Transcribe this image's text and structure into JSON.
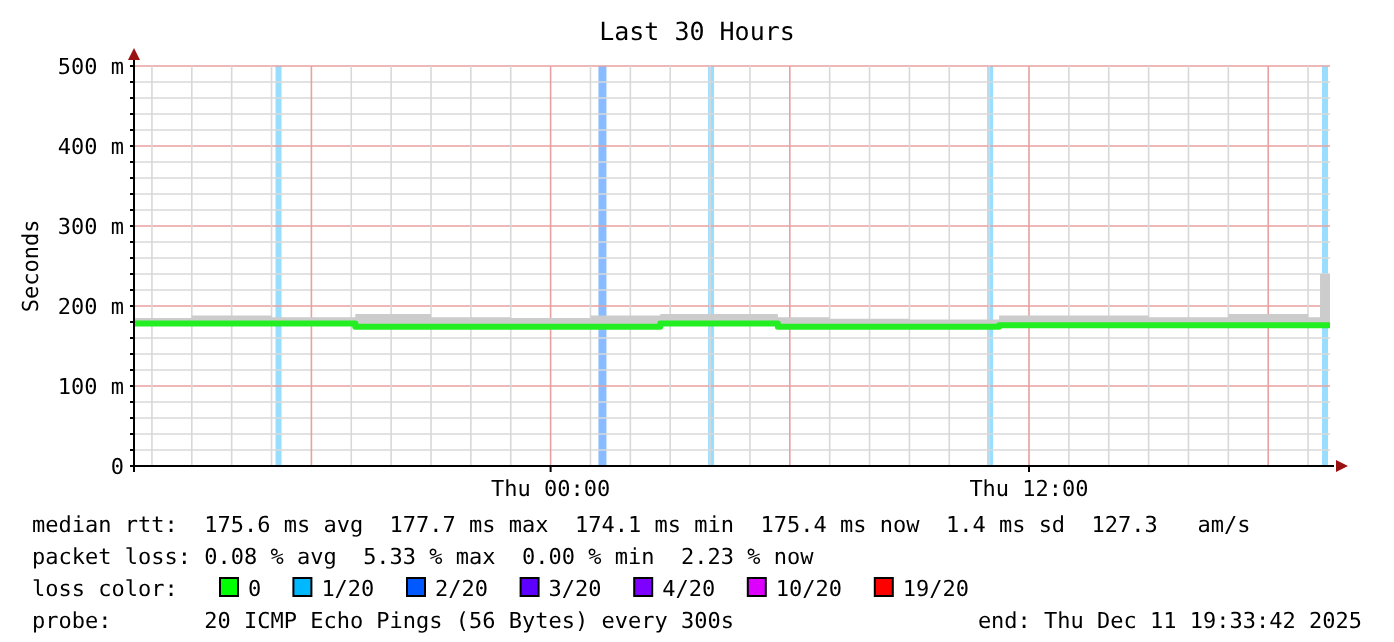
{
  "chart_data": {
    "type": "step",
    "title": "Last 30 Hours",
    "ylabel": "Seconds",
    "xlim": [
      "2025-12-10T13:33",
      "2025-12-11T19:33"
    ],
    "xticks": [
      {
        "value": "2025-12-10T14:00",
        "label": null
      },
      {
        "value": "2025-12-10T15:00",
        "label": null
      },
      {
        "value": "2025-12-10T16:00",
        "label": null
      },
      {
        "value": "2025-12-10T17:00",
        "label": null
      },
      {
        "value": "2025-12-10T18:00",
        "label": null
      },
      {
        "value": "2025-12-10T19:00",
        "label": null
      },
      {
        "value": "2025-12-10T20:00",
        "label": null
      },
      {
        "value": "2025-12-10T21:00",
        "label": null
      },
      {
        "value": "2025-12-10T22:00",
        "label": null
      },
      {
        "value": "2025-12-10T23:00",
        "label": null
      },
      {
        "value": "2025-12-11T00:00",
        "label": "Thu 00:00"
      },
      {
        "value": "2025-12-11T01:00",
        "label": null
      },
      {
        "value": "2025-12-11T02:00",
        "label": null
      },
      {
        "value": "2025-12-11T03:00",
        "label": null
      },
      {
        "value": "2025-12-11T04:00",
        "label": null
      },
      {
        "value": "2025-12-11T05:00",
        "label": null
      },
      {
        "value": "2025-12-11T06:00",
        "label": null
      },
      {
        "value": "2025-12-11T07:00",
        "label": null
      },
      {
        "value": "2025-12-11T08:00",
        "label": null
      },
      {
        "value": "2025-12-11T09:00",
        "label": null
      },
      {
        "value": "2025-12-11T10:00",
        "label": null
      },
      {
        "value": "2025-12-11T11:00",
        "label": null
      },
      {
        "value": "2025-12-11T12:00",
        "label": "Thu 12:00"
      },
      {
        "value": "2025-12-11T13:00",
        "label": null
      },
      {
        "value": "2025-12-11T14:00",
        "label": null
      },
      {
        "value": "2025-12-11T15:00",
        "label": null
      },
      {
        "value": "2025-12-11T16:00",
        "label": null
      },
      {
        "value": "2025-12-11T17:00",
        "label": null
      },
      {
        "value": "2025-12-11T18:00",
        "label": null
      },
      {
        "value": "2025-12-11T19:00",
        "label": null
      }
    ],
    "ylim": [
      0,
      500
    ],
    "yticks": [
      0,
      {
        "value": 20,
        "label": null
      },
      {
        "value": 40,
        "label": null
      },
      {
        "value": 60,
        "label": null
      },
      {
        "value": 80,
        "label": null
      },
      {
        "value": 100,
        "label": "100 m"
      },
      {
        "value": 120,
        "label": null
      },
      {
        "value": 140,
        "label": null
      },
      {
        "value": 160,
        "label": null
      },
      {
        "value": 180,
        "label": null
      },
      {
        "value": 200,
        "label": "200 m"
      },
      {
        "value": 220,
        "label": null
      },
      {
        "value": 240,
        "label": null
      },
      {
        "value": 260,
        "label": null
      },
      {
        "value": 280,
        "label": null
      },
      {
        "value": 300,
        "label": "300 m"
      },
      {
        "value": 320,
        "label": null
      },
      {
        "value": 340,
        "label": null
      },
      {
        "value": 360,
        "label": null
      },
      {
        "value": 380,
        "label": null
      },
      {
        "value": 400,
        "label": "400 m"
      },
      {
        "value": 420,
        "label": null
      },
      {
        "value": 440,
        "label": null
      },
      {
        "value": 460,
        "label": null
      },
      {
        "value": 480,
        "label": null
      },
      {
        "value": 500,
        "label": "500 m"
      }
    ],
    "grid": true,
    "series": [
      {
        "color": "#22ee22",
        "x": [
          "2025-12-10T13:33",
          "2025-12-10T15:00",
          "2025-12-10T17:00",
          "2025-12-10T19:06",
          "2025-12-10T21:00",
          "2025-12-10T23:00",
          "2025-12-11T01:00",
          "2025-12-11T02:45",
          "2025-12-11T04:00",
          "2025-12-11T05:42",
          "2025-12-11T07:00",
          "2025-12-11T09:00",
          "2025-12-11T11:15",
          "2025-12-11T13:00",
          "2025-12-11T15:00",
          "2025-12-11T17:00",
          "2025-12-11T19:00",
          "2025-12-11T19:18",
          "2025-12-11T19:33"
        ],
        "values": [
          178,
          178,
          178,
          174,
          174,
          174,
          174,
          178,
          178,
          174,
          174,
          174,
          176,
          176,
          176,
          176,
          176,
          176,
          176
        ],
        "lower": [
          175,
          175,
          175,
          172,
          172,
          172,
          172,
          175,
          175,
          172,
          172,
          172,
          174,
          174,
          174,
          174,
          174,
          174,
          174
        ],
        "upper": [
          185,
          188,
          186,
          190,
          186,
          185,
          188,
          190,
          190,
          186,
          184,
          183,
          188,
          188,
          186,
          190,
          186,
          240,
          186
        ]
      }
    ],
    "bands": [
      {
        "axis": "x",
        "from": "2025-12-10T17:06",
        "to": "2025-12-10T17:15",
        "color": "#99ddff"
      },
      {
        "axis": "x",
        "from": "2025-12-11T01:12",
        "to": "2025-12-11T01:24",
        "color": "#88bbff"
      },
      {
        "axis": "x",
        "from": "2025-12-11T03:57",
        "to": "2025-12-11T04:06",
        "color": "#99ddff"
      },
      {
        "axis": "x",
        "from": "2025-12-11T10:57",
        "to": "2025-12-11T11:06",
        "color": "#99ddff"
      },
      {
        "axis": "x",
        "from": "2025-12-11T19:21",
        "to": "2025-12-11T19:30",
        "color": "#99ddff"
      }
    ],
    "legend_title": "loss color:",
    "annotations": [
      "median rtt:  175.6 ms avg  177.7 ms max  174.1 ms min  175.4 ms now  1.4 ms sd  127.3   am/s",
      "packet loss: 0.08 % avg  5.33 % max  0.00 % min  2.23 % now",
      "0",
      "1/20",
      "2/20",
      "3/20",
      "4/20",
      "10/20",
      "19/20",
      "probe:       20 ICMP Echo Pings (56 Bytes) every 300s",
      "end: Thu Dec 11 19:33:42 2025"
    ]
  }
}
